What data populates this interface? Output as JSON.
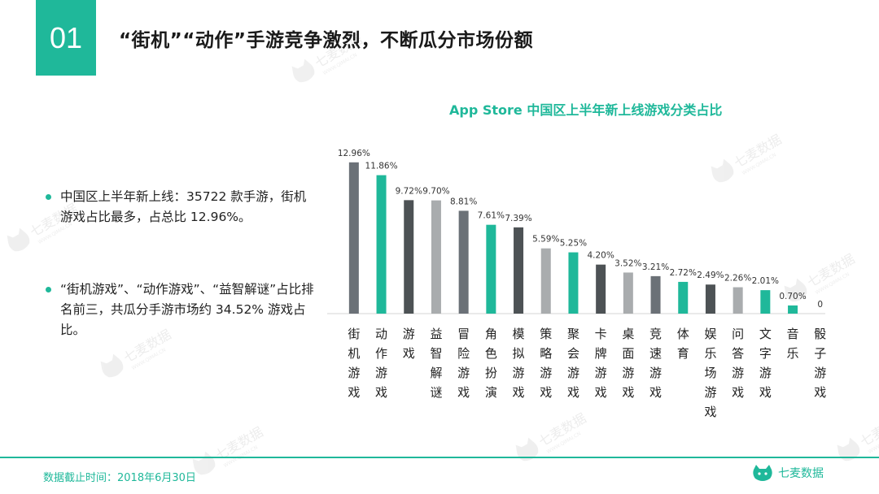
{
  "header": {
    "section_number": "01",
    "title": "“街机”“动作”手游竞争激烈，不断瓜分市场份额"
  },
  "bullets": [
    {
      "text": "中国区上半年新上线：35722 款手游，街机游戏占比最多，占总比 12.96%。"
    },
    {
      "text": "“街机游戏”、“动作游戏”、“益智解谜”占比排名前三，共瓜分手游市场约 34.52% 游戏占比。"
    }
  ],
  "footer": {
    "note": "数据截止时间：2018年6月30日",
    "logo_text": "七麦数据",
    "logo_sub": "WWW.QIMAI.CN"
  },
  "watermark": {
    "text": "七麦数据",
    "sub": "WWW.QIMAI.CN"
  },
  "colors": {
    "accent": "#1fb89a",
    "bar_gray": "#6b7177",
    "bar_dark": "#4d5255",
    "bar_light": "#a9acae"
  },
  "chart_data": {
    "type": "bar",
    "title": "App Store 中国区上半年新上线游戏分类占比",
    "categories": [
      "街机游戏",
      "动作游戏",
      "游戏",
      "益智解谜",
      "冒险游戏",
      "角色扮演",
      "模拟游戏",
      "策略游戏",
      "聚会游戏",
      "卡牌游戏",
      "桌面游戏",
      "竞速游戏",
      "体育",
      "娱乐场游戏",
      "问答游戏",
      "文字游戏",
      "音乐",
      "骰子游戏"
    ],
    "values": [
      12.96,
      11.86,
      9.72,
      9.7,
      8.81,
      7.61,
      7.39,
      5.59,
      5.25,
      4.2,
      3.52,
      3.21,
      2.72,
      2.49,
      2.26,
      2.01,
      0.7,
      0
    ],
    "value_labels": [
      "12.96%",
      "11.86%",
      "9.72%",
      "9.70%",
      "8.81%",
      "7.61%",
      "7.39%",
      "5.59%",
      "5.25%",
      "4.20%",
      "3.52%",
      "3.21%",
      "2.72%",
      "2.49%",
      "2.26%",
      "2.01%",
      "0.70%",
      "0"
    ],
    "bar_colors": [
      "gray",
      "accent",
      "dark",
      "light",
      "gray",
      "accent",
      "dark",
      "light",
      "accent",
      "dark",
      "light",
      "gray",
      "accent",
      "dark",
      "light",
      "accent",
      "accent",
      "accent"
    ],
    "ylim": [
      0,
      14
    ],
    "grid": false,
    "xlabel": "",
    "ylabel": ""
  }
}
